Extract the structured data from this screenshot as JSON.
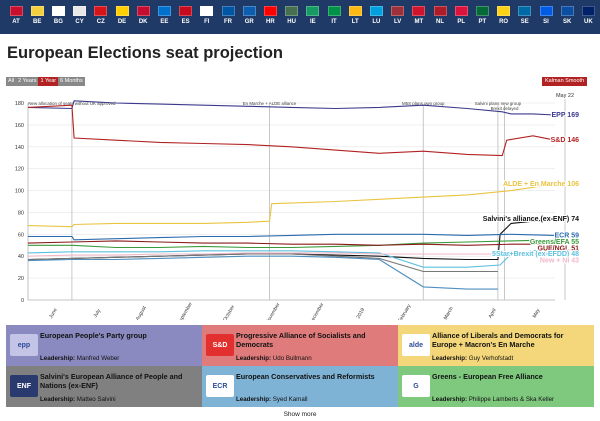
{
  "flags": [
    {
      "code": "AT",
      "color": "#c8102e"
    },
    {
      "code": "BE",
      "color": "#f4d03f"
    },
    {
      "code": "BG",
      "color": "#ffffff"
    },
    {
      "code": "CY",
      "color": "#e8e8e8"
    },
    {
      "code": "CZ",
      "color": "#d7141a"
    },
    {
      "code": "DE",
      "color": "#ffce00"
    },
    {
      "code": "DK",
      "color": "#c60c30"
    },
    {
      "code": "EE",
      "color": "#0072ce"
    },
    {
      "code": "ES",
      "color": "#c60b1e"
    },
    {
      "code": "FI",
      "color": "#ffffff"
    },
    {
      "code": "FR",
      "color": "#0055a4"
    },
    {
      "code": "GR",
      "color": "#0d5eaf"
    },
    {
      "code": "HR",
      "color": "#ff0000"
    },
    {
      "code": "HU",
      "color": "#477050"
    },
    {
      "code": "IE",
      "color": "#169b62"
    },
    {
      "code": "IT",
      "color": "#009246"
    },
    {
      "code": "LT",
      "color": "#fdb913"
    },
    {
      "code": "LU",
      "color": "#00a1de"
    },
    {
      "code": "LV",
      "color": "#9e3039"
    },
    {
      "code": "MT",
      "color": "#cf142b"
    },
    {
      "code": "NL",
      "color": "#ae1c28"
    },
    {
      "code": "PL",
      "color": "#dc143c"
    },
    {
      "code": "PT",
      "color": "#046a38"
    },
    {
      "code": "RO",
      "color": "#fcd116"
    },
    {
      "code": "SE",
      "color": "#006aa7"
    },
    {
      "code": "SI",
      "color": "#005ce5"
    },
    {
      "code": "SK",
      "color": "#0b4ea2"
    },
    {
      "code": "UK",
      "color": "#012169"
    }
  ],
  "title": "European Elections seat projection",
  "range_buttons": [
    "All",
    "2 Years",
    "1 Year",
    "6 Months"
  ],
  "active_range": "1 Year",
  "smooth_label": "Kalman Smooth",
  "chart_data": {
    "type": "line",
    "title": "European Elections seat projection",
    "ylim": [
      0,
      180
    ],
    "yticks": [
      0,
      20,
      40,
      60,
      80,
      100,
      120,
      140,
      160,
      180
    ],
    "xlim": [
      0,
      12
    ],
    "xticks": [
      {
        "x": 0.6,
        "label": "June"
      },
      {
        "x": 1.6,
        "label": "July"
      },
      {
        "x": 2.6,
        "label": "August"
      },
      {
        "x": 3.6,
        "label": "September"
      },
      {
        "x": 4.6,
        "label": "October"
      },
      {
        "x": 5.6,
        "label": "November"
      },
      {
        "x": 6.6,
        "label": "December"
      },
      {
        "x": 7.6,
        "label": "2019"
      },
      {
        "x": 8.6,
        "label": "February"
      },
      {
        "x": 9.6,
        "label": "March"
      },
      {
        "x": 10.6,
        "label": "April"
      },
      {
        "x": 11.6,
        "label": "May"
      }
    ],
    "current_label": "May 22",
    "events": [
      {
        "x": 1.0,
        "label": "New allocation of seats without UK approved"
      },
      {
        "x": 5.5,
        "label": "En Marche + ALDE alliance"
      },
      {
        "x": 9.0,
        "label": "M5S plans own group"
      },
      {
        "x": 10.7,
        "label": "Salvini plans new group"
      },
      {
        "x": 10.85,
        "label": "Brexit delayed"
      }
    ],
    "series": [
      {
        "name": "EPP",
        "value": 169,
        "color": "#3a3a8c",
        "label": "EPP 169",
        "points": [
          [
            0,
            176
          ],
          [
            1,
            175
          ],
          [
            1.05,
            182
          ],
          [
            2,
            180
          ],
          [
            3,
            179
          ],
          [
            4,
            178
          ],
          [
            5,
            177
          ],
          [
            6,
            176
          ],
          [
            7,
            175
          ],
          [
            8,
            176
          ],
          [
            9,
            178
          ],
          [
            10,
            175
          ],
          [
            10.8,
            172
          ],
          [
            11,
            170
          ],
          [
            11.5,
            170
          ],
          [
            12,
            169
          ]
        ]
      },
      {
        "name": "S&D",
        "value": 146,
        "color": "#b22222",
        "label": "S&D 146",
        "points": [
          [
            0,
            176
          ],
          [
            1,
            178
          ],
          [
            1.05,
            148
          ],
          [
            2,
            146
          ],
          [
            3,
            144
          ],
          [
            4,
            143
          ],
          [
            5,
            142
          ],
          [
            6,
            140
          ],
          [
            7,
            137
          ],
          [
            8,
            134
          ],
          [
            9,
            136
          ],
          [
            10,
            133
          ],
          [
            10.8,
            132
          ],
          [
            10.9,
            146
          ],
          [
            11.5,
            150
          ],
          [
            12,
            146
          ]
        ]
      },
      {
        "name": "ALDE",
        "value": 106,
        "color": "#e8c440",
        "label": "ALDE + En Marche 106",
        "points": [
          [
            0,
            68
          ],
          [
            1,
            67
          ],
          [
            1.05,
            69
          ],
          [
            2,
            70
          ],
          [
            3,
            70
          ],
          [
            4,
            70
          ],
          [
            5,
            71
          ],
          [
            5.5,
            72
          ],
          [
            5.55,
            88
          ],
          [
            7,
            90
          ],
          [
            8,
            92
          ],
          [
            9,
            94
          ],
          [
            10,
            96
          ],
          [
            11,
            100
          ],
          [
            12,
            106
          ]
        ]
      },
      {
        "name": "Salvini",
        "value": 74,
        "color": "#111111",
        "label": "Salvini's alliance (ex-ENF) 74",
        "points": [
          [
            0,
            37
          ],
          [
            1,
            38
          ],
          [
            2,
            39
          ],
          [
            3,
            40
          ],
          [
            4,
            41
          ],
          [
            5,
            42
          ],
          [
            6,
            42
          ],
          [
            7,
            41
          ],
          [
            8,
            40
          ],
          [
            9,
            38
          ],
          [
            10,
            37
          ],
          [
            10.7,
            37
          ],
          [
            10.75,
            60
          ],
          [
            11,
            70
          ],
          [
            12,
            74
          ]
        ]
      },
      {
        "name": "ECR",
        "value": 59,
        "color": "#2b6cb0",
        "label": "ECR 59",
        "points": [
          [
            0,
            58
          ],
          [
            1,
            58
          ],
          [
            1.05,
            55
          ],
          [
            2,
            56
          ],
          [
            3,
            57
          ],
          [
            4,
            58
          ],
          [
            5,
            58
          ],
          [
            6,
            59
          ],
          [
            7,
            60
          ],
          [
            8,
            60
          ],
          [
            9,
            60
          ],
          [
            10,
            59
          ],
          [
            11,
            60
          ],
          [
            12,
            59
          ]
        ]
      },
      {
        "name": "Greens",
        "value": 55,
        "color": "#3a9a3a",
        "label": "Greens/EFA 55",
        "points": [
          [
            0,
            50
          ],
          [
            1,
            50
          ],
          [
            2,
            48
          ],
          [
            3,
            48
          ],
          [
            4,
            49
          ],
          [
            5,
            48
          ],
          [
            6,
            48
          ],
          [
            7,
            49
          ],
          [
            8,
            50
          ],
          [
            9,
            52
          ],
          [
            10,
            53
          ],
          [
            11,
            54
          ],
          [
            12,
            55
          ]
        ]
      },
      {
        "name": "GUE",
        "value": 51,
        "color": "#8b1a1a",
        "label": "GUE/NGL 51",
        "points": [
          [
            0,
            52
          ],
          [
            1,
            53
          ],
          [
            2,
            54
          ],
          [
            3,
            53
          ],
          [
            4,
            52
          ],
          [
            5,
            52
          ],
          [
            6,
            51
          ],
          [
            7,
            51
          ],
          [
            8,
            50
          ],
          [
            9,
            51
          ],
          [
            10,
            50
          ],
          [
            11,
            51
          ],
          [
            12,
            51
          ]
        ]
      },
      {
        "name": "M5S",
        "value": 48,
        "color": "#5bc0de",
        "label": "5Star+Brexit (ex-EFDD) 48",
        "points": [
          [
            0,
            43
          ],
          [
            1,
            44
          ],
          [
            2,
            44
          ],
          [
            3,
            44
          ],
          [
            4,
            45
          ],
          [
            5,
            45
          ],
          [
            6,
            45
          ],
          [
            7,
            44
          ],
          [
            8,
            43
          ],
          [
            9,
            30
          ],
          [
            10,
            30
          ],
          [
            10.75,
            32
          ],
          [
            11,
            42
          ],
          [
            12,
            48
          ]
        ]
      },
      {
        "name": "NI",
        "value": 43,
        "color": "#f0b8c8",
        "label": "New + NI 43",
        "points": [
          [
            0,
            40
          ],
          [
            1,
            41
          ],
          [
            2,
            41
          ],
          [
            3,
            42
          ],
          [
            4,
            42
          ],
          [
            5,
            43
          ],
          [
            6,
            43
          ],
          [
            7,
            43
          ],
          [
            8,
            42
          ],
          [
            9,
            42
          ],
          [
            10,
            42
          ],
          [
            11,
            42
          ],
          [
            12,
            43
          ]
        ]
      },
      {
        "name": "ENF",
        "value": null,
        "color": "#777777",
        "label": "",
        "points": [
          [
            0,
            37
          ],
          [
            1,
            38
          ],
          [
            2,
            39
          ],
          [
            3,
            40
          ],
          [
            4,
            41
          ],
          [
            5,
            42
          ],
          [
            6,
            42
          ],
          [
            7,
            40
          ],
          [
            8,
            38
          ],
          [
            9,
            26
          ],
          [
            10,
            26
          ],
          [
            10.7,
            26
          ]
        ]
      },
      {
        "name": "EFDD",
        "value": null,
        "color": "#4e8fbf",
        "label": "",
        "points": [
          [
            0,
            36
          ],
          [
            1,
            37
          ],
          [
            2,
            37
          ],
          [
            3,
            38
          ],
          [
            4,
            39
          ],
          [
            5,
            40
          ],
          [
            6,
            40
          ],
          [
            7,
            39
          ],
          [
            8,
            37
          ],
          [
            9,
            12
          ],
          [
            10,
            10
          ],
          [
            10.7,
            10
          ]
        ]
      }
    ]
  },
  "cards": [
    {
      "name": "European People's Party group",
      "leader_label": "Leadership:",
      "leader": "Manfred Weber",
      "bg": "#8a8ac0",
      "logo": "epp",
      "logo_bg": "#c4c4e6"
    },
    {
      "name": "Progressive Alliance of Socialists and Democrats",
      "leader_label": "Leadership:",
      "leader": "Udo Bullmann",
      "bg": "#e07b7b",
      "logo": "S&D",
      "logo_bg": "#e2302e"
    },
    {
      "name": "Alliance of Liberals and Democrats for Europe + Macron's En Marche",
      "leader_label": "Leadership:",
      "leader": "Guy Verhofstadt",
      "bg": "#f3d77a",
      "logo": "alde",
      "logo_bg": "#ffffff"
    },
    {
      "name": "Salvini's European Alliance of People and Nations (ex-ENF)",
      "leader_label": "Leadership:",
      "leader": "Matteo Salvini",
      "bg": "#808080",
      "logo": "ENF",
      "logo_bg": "#2a3a6e"
    },
    {
      "name": "European Conservatives and Reformists",
      "leader_label": "Leadership:",
      "leader": "Syed Kamall",
      "bg": "#7eb3d6",
      "logo": "ECR",
      "logo_bg": "#ffffff"
    },
    {
      "name": "Greens - European Free Alliance",
      "leader_label": "Leadership:",
      "leader": "Philippe Lamberts & Ska Keller",
      "bg": "#7fc97f",
      "logo": "G",
      "logo_bg": "#ffffff"
    }
  ],
  "show_more": "Show more"
}
